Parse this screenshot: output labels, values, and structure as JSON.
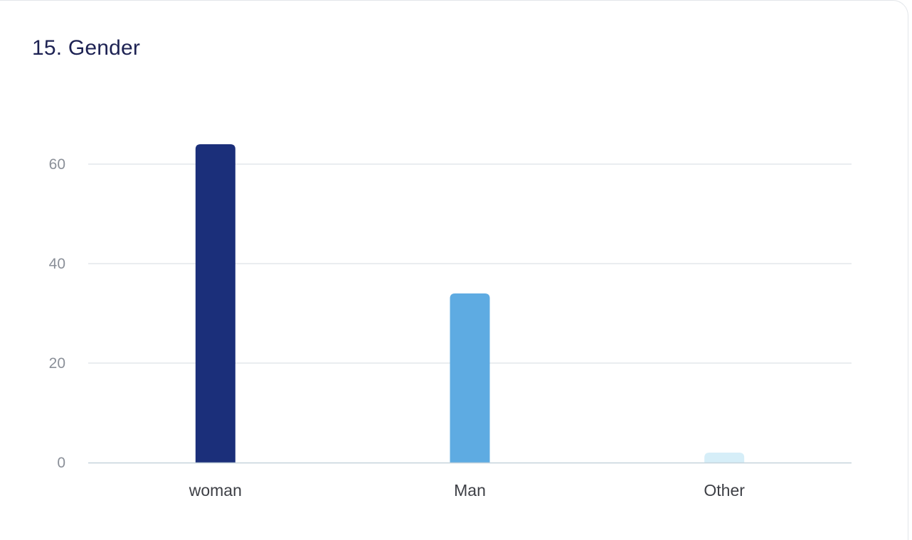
{
  "chart_data": {
    "type": "bar",
    "title": "15. Gender",
    "categories": [
      "woman",
      "Man",
      "Other"
    ],
    "values": [
      64,
      34,
      2
    ],
    "colors": [
      "#1b2f7a",
      "#5eabe2",
      "#d6eef8"
    ],
    "ylim": [
      0,
      72
    ],
    "yticks": [
      0,
      20,
      40,
      60
    ],
    "ytick_labels": [
      "0",
      "20",
      "40",
      "60"
    ],
    "grid": true,
    "legend": "none",
    "xlabel": "",
    "ylabel": ""
  }
}
